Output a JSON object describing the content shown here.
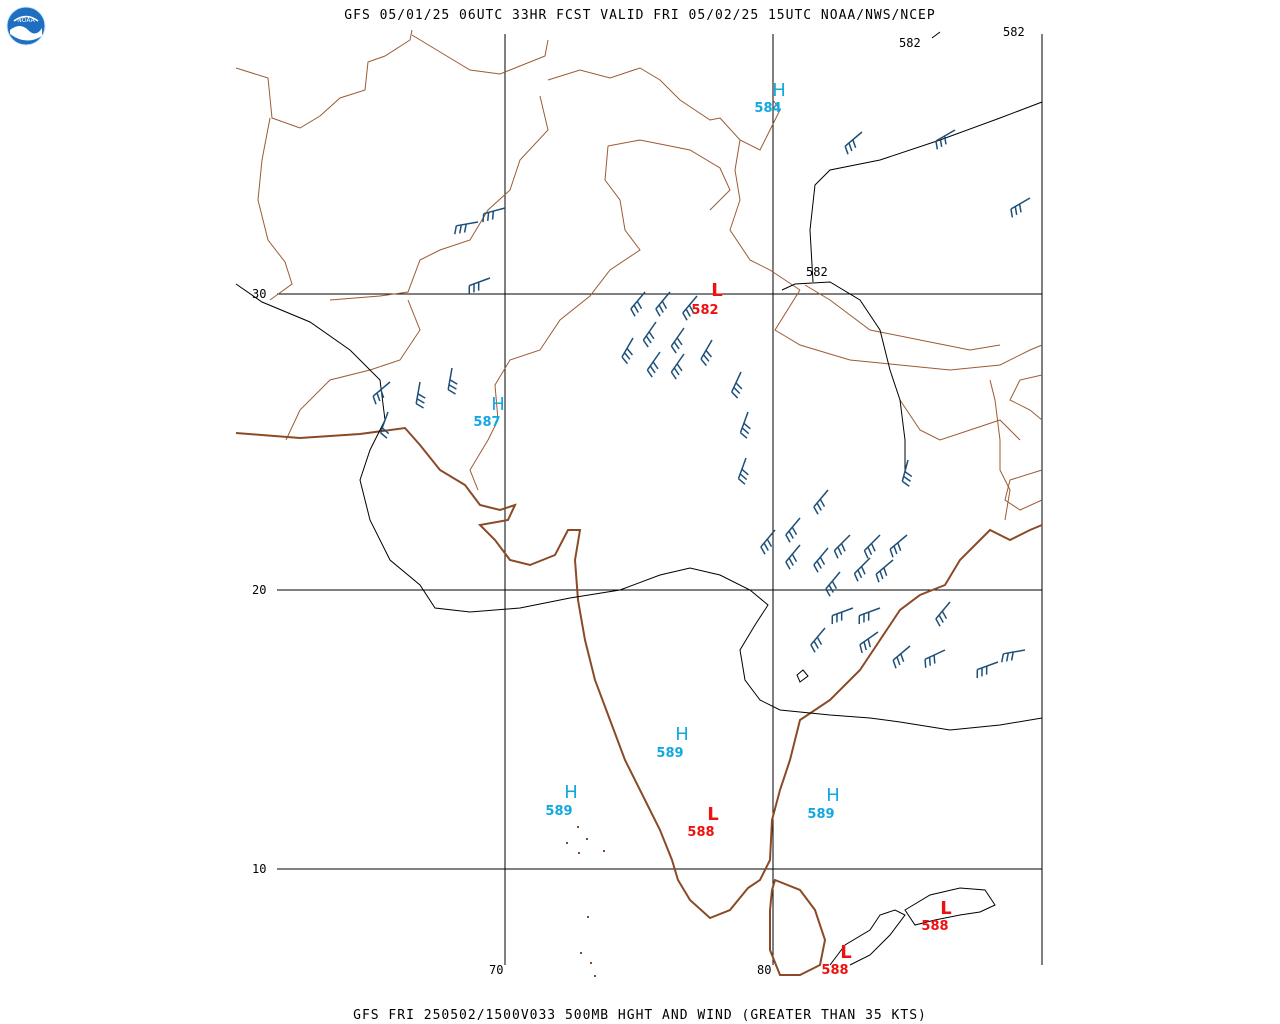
{
  "header": {
    "title": "GFS 05/01/25 06UTC 33HR FCST VALID FRI 05/02/25 15UTC NOAA/NWS/NCEP",
    "logo_text": "NOAA"
  },
  "footer": {
    "caption": "GFS FRI 250502/1500V033 500MB HGHT AND WIND (GREATER THAN 35 KTS)"
  },
  "axes": {
    "lat_labels": [
      "30",
      "20",
      "10"
    ],
    "lon_labels": [
      "70",
      "80"
    ]
  },
  "contours": {
    "labels": [
      "582",
      "582",
      "582"
    ]
  },
  "centers": [
    {
      "type": "H",
      "value": "584"
    },
    {
      "type": "L",
      "value": "582"
    },
    {
      "type": "H",
      "value": "587"
    },
    {
      "type": "H",
      "value": "589"
    },
    {
      "type": "H",
      "value": "589"
    },
    {
      "type": "L",
      "value": "588"
    },
    {
      "type": "H",
      "value": "589"
    },
    {
      "type": "L",
      "value": "588"
    },
    {
      "type": "L",
      "value": "588"
    }
  ],
  "colors": {
    "high": "#12a8e0",
    "low": "#ee1111",
    "coast": "#8b4a26",
    "border": "#9c5a35",
    "barb": "#1d4f78",
    "contour": "#000000",
    "grid": "#000000"
  }
}
